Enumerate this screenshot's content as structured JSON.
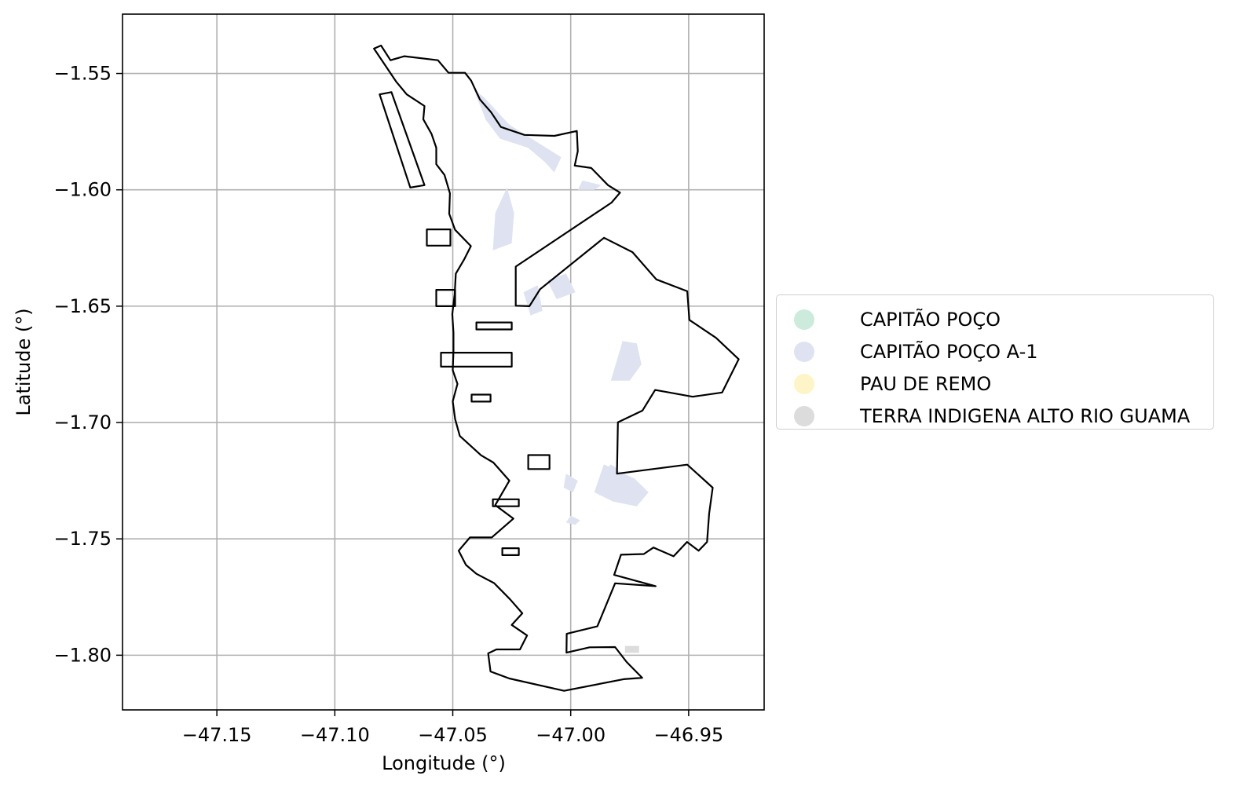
{
  "chart_data": {
    "type": "map",
    "xlabel": "Longitude (°)",
    "ylabel": "Latitude (°)",
    "xlim": [
      -47.19,
      -46.918
    ],
    "ylim": [
      -1.8235,
      -1.5245
    ],
    "xticks": [
      {
        "value": -47.15,
        "label": "−47.15"
      },
      {
        "value": -47.1,
        "label": "−47.10"
      },
      {
        "value": -47.05,
        "label": "−47.05"
      },
      {
        "value": -47.0,
        "label": "−47.00"
      },
      {
        "value": -46.95,
        "label": "−46.95"
      }
    ],
    "yticks": [
      {
        "value": -1.55,
        "label": "−1.55"
      },
      {
        "value": -1.6,
        "label": "−1.60"
      },
      {
        "value": -1.65,
        "label": "−1.65"
      },
      {
        "value": -1.7,
        "label": "−1.70"
      },
      {
        "value": -1.75,
        "label": "−1.75"
      },
      {
        "value": -1.8,
        "label": "−1.80"
      }
    ],
    "grid": true,
    "legend_placement": "center-right outside",
    "legend": [
      {
        "label": "CAPITÃO POÇO",
        "color": "#cdebdc"
      },
      {
        "label": "CAPITÃO POÇO A-1",
        "color": "#dfe3f1"
      },
      {
        "label": "PAU DE REMO",
        "color": "#fdf5c8"
      },
      {
        "label": "TERRA INDIGENA ALTO RIO GUAMA",
        "color": "#dcdcdc"
      }
    ],
    "boundary_color": "#000000",
    "boundary": [
      [
        -47.0834,
        -1.5393
      ],
      [
        -47.0804,
        -1.538
      ],
      [
        -47.0764,
        -1.5443
      ],
      [
        -47.0705,
        -1.5426
      ],
      [
        -47.0563,
        -1.5443
      ],
      [
        -47.0518,
        -1.5497
      ],
      [
        -47.0448,
        -1.5497
      ],
      [
        -47.0422,
        -1.5531
      ],
      [
        -47.0385,
        -1.5612
      ],
      [
        -47.0338,
        -1.5666
      ],
      [
        -47.0296,
        -1.573
      ],
      [
        -47.0196,
        -1.5764
      ],
      [
        -47.0069,
        -1.5768
      ],
      [
        -46.9974,
        -1.5747
      ],
      [
        -46.997,
        -1.5834
      ],
      [
        -46.9983,
        -1.5896
      ],
      [
        -46.9913,
        -1.5906
      ],
      [
        -46.9842,
        -1.598
      ],
      [
        -46.9791,
        -1.6012
      ],
      [
        -46.9827,
        -1.6055
      ],
      [
        -47.0233,
        -1.633
      ],
      [
        -47.0233,
        -1.6498
      ],
      [
        -47.0175,
        -1.65
      ],
      [
        -47.013,
        -1.6427
      ],
      [
        -46.9859,
        -1.6206
      ],
      [
        -46.9738,
        -1.6268
      ],
      [
        -46.9637,
        -1.6385
      ],
      [
        -46.9506,
        -1.6436
      ],
      [
        -46.9497,
        -1.6559
      ],
      [
        -46.9384,
        -1.6636
      ],
      [
        -46.9288,
        -1.6728
      ],
      [
        -46.9358,
        -1.6871
      ],
      [
        -46.9483,
        -1.6889
      ],
      [
        -46.9642,
        -1.686
      ],
      [
        -46.9696,
        -1.6949
      ],
      [
        -46.98,
        -1.6999
      ],
      [
        -46.9804,
        -1.722
      ],
      [
        -46.9506,
        -1.7181
      ],
      [
        -46.9398,
        -1.728
      ],
      [
        -46.9413,
        -1.739
      ],
      [
        -46.9422,
        -1.7513
      ],
      [
        -46.9458,
        -1.7551
      ],
      [
        -46.9507,
        -1.7513
      ],
      [
        -46.9564,
        -1.7575
      ],
      [
        -46.9649,
        -1.7537
      ],
      [
        -46.969,
        -1.7565
      ],
      [
        -46.9787,
        -1.7568
      ],
      [
        -46.9816,
        -1.7655
      ],
      [
        -46.964,
        -1.7703
      ],
      [
        -46.9812,
        -1.7691
      ],
      [
        -46.9887,
        -1.7876
      ],
      [
        -47.0017,
        -1.7908
      ],
      [
        -47.0018,
        -1.7989
      ],
      [
        -46.992,
        -1.7966
      ],
      [
        -46.9812,
        -1.7965
      ],
      [
        -46.9763,
        -1.8029
      ],
      [
        -46.9697,
        -1.8097
      ],
      [
        -46.9776,
        -1.8103
      ],
      [
        -47.0028,
        -1.8153
      ],
      [
        -47.026,
        -1.81
      ],
      [
        -47.034,
        -1.807
      ],
      [
        -47.035,
        -1.7992
      ],
      [
        -47.0315,
        -1.7975
      ],
      [
        -47.0215,
        -1.7975
      ],
      [
        -47.0185,
        -1.7915
      ],
      [
        -47.025,
        -1.787
      ],
      [
        -47.0205,
        -1.782
      ],
      [
        -47.0257,
        -1.776
      ],
      [
        -47.0325,
        -1.769
      ],
      [
        -47.04,
        -1.765
      ],
      [
        -47.0444,
        -1.7612
      ],
      [
        -47.0475,
        -1.7551
      ],
      [
        -47.0427,
        -1.7494
      ],
      [
        -47.0335,
        -1.7494
      ],
      [
        -47.0243,
        -1.7413
      ],
      [
        -47.032,
        -1.7355
      ],
      [
        -47.026,
        -1.725
      ],
      [
        -47.0328,
        -1.7172
      ],
      [
        -47.038,
        -1.7141
      ],
      [
        -47.047,
        -1.7058
      ],
      [
        -47.049,
        -1.6985
      ],
      [
        -47.05,
        -1.6909
      ],
      [
        -47.048,
        -1.6834
      ],
      [
        -47.05,
        -1.6775
      ],
      [
        -47.0497,
        -1.6694
      ],
      [
        -47.0497,
        -1.6614
      ],
      [
        -47.0502,
        -1.6534
      ],
      [
        -47.0492,
        -1.645
      ],
      [
        -47.0487,
        -1.636
      ],
      [
        -47.0452,
        -1.63
      ],
      [
        -47.0423,
        -1.6242
      ],
      [
        -47.049,
        -1.6172
      ],
      [
        -47.0515,
        -1.6103
      ],
      [
        -47.0512,
        -1.6015
      ],
      [
        -47.0535,
        -1.5936
      ],
      [
        -47.057,
        -1.589
      ],
      [
        -47.057,
        -1.5819
      ],
      [
        -47.059,
        -1.576
      ],
      [
        -47.0625,
        -1.5697
      ],
      [
        -47.062,
        -1.564
      ],
      [
        -47.0695,
        -1.559
      ],
      [
        -47.074,
        -1.5535
      ],
      [
        -47.0834,
        -1.5393
      ]
    ],
    "shaded_areas": [
      {
        "series": "CAPITÃO POÇO A-1",
        "points": [
          [
            -47.041,
            -1.557
          ],
          [
            -47.036,
            -1.57
          ],
          [
            -47.03,
            -1.578
          ],
          [
            -47.018,
            -1.582
          ],
          [
            -47.011,
            -1.588
          ],
          [
            -47.007,
            -1.5925
          ],
          [
            -47.004,
            -1.586
          ],
          [
            -47.015,
            -1.579
          ],
          [
            -47.026,
            -1.572
          ],
          [
            -47.037,
            -1.56
          ]
        ]
      },
      {
        "series": "CAPITÃO POÇO A-1",
        "points": [
          [
            -47.027,
            -1.599
          ],
          [
            -47.032,
            -1.61
          ],
          [
            -47.033,
            -1.626
          ],
          [
            -47.025,
            -1.623
          ],
          [
            -47.024,
            -1.61
          ]
        ]
      },
      {
        "series": "CAPITÃO POÇO A-1",
        "points": [
          [
            -46.995,
            -1.596
          ],
          [
            -46.987,
            -1.598
          ],
          [
            -46.99,
            -1.6
          ],
          [
            -46.997,
            -1.6
          ]
        ]
      },
      {
        "series": "CAPITÃO POÇO A-1",
        "points": [
          [
            -47.01,
            -1.639
          ],
          [
            -47.002,
            -1.636
          ],
          [
            -46.998,
            -1.644
          ],
          [
            -47.006,
            -1.647
          ]
        ]
      },
      {
        "series": "CAPITÃO POÇO A-1",
        "points": [
          [
            -47.02,
            -1.644
          ],
          [
            -47.014,
            -1.641
          ],
          [
            -47.012,
            -1.652
          ],
          [
            -47.017,
            -1.654
          ]
        ]
      },
      {
        "series": "CAPITÃO POÇO A-1",
        "points": [
          [
            -46.978,
            -1.665
          ],
          [
            -46.972,
            -1.666
          ],
          [
            -46.97,
            -1.675
          ],
          [
            -46.975,
            -1.682
          ],
          [
            -46.983,
            -1.682
          ]
        ]
      },
      {
        "series": "CAPITÃO POÇO A-1",
        "points": [
          [
            -46.986,
            -1.718
          ],
          [
            -46.973,
            -1.724
          ],
          [
            -46.967,
            -1.73
          ],
          [
            -46.972,
            -1.736
          ],
          [
            -46.982,
            -1.734
          ],
          [
            -46.99,
            -1.73
          ]
        ]
      },
      {
        "series": "CAPITÃO POÇO A-1",
        "points": [
          [
            -47.002,
            -1.722
          ],
          [
            -46.997,
            -1.725
          ],
          [
            -46.999,
            -1.73
          ],
          [
            -47.003,
            -1.728
          ]
        ]
      },
      {
        "series": "CAPITÃO POÇO A-1",
        "points": [
          [
            -47.0,
            -1.74
          ],
          [
            -46.996,
            -1.742
          ],
          [
            -46.998,
            -1.744
          ],
          [
            -47.002,
            -1.743
          ]
        ]
      },
      {
        "series": "CAPITÃO POÇO A-1",
        "points": [
          [
            -46.983,
            -1.718
          ],
          [
            -46.98,
            -1.72
          ],
          [
            -46.983,
            -1.723
          ],
          [
            -46.986,
            -1.721
          ]
        ]
      },
      {
        "series": "TERRA INDIGENA ALTO RIO GUAMA",
        "points": [
          [
            -46.977,
            -1.796
          ],
          [
            -46.971,
            -1.796
          ],
          [
            -46.971,
            -1.799
          ],
          [
            -46.977,
            -1.799
          ]
        ]
      }
    ],
    "holes": [
      {
        "points": [
          [
            -47.081,
            -1.559
          ],
          [
            -47.076,
            -1.558
          ],
          [
            -47.062,
            -1.598
          ],
          [
            -47.068,
            -1.599
          ]
        ]
      },
      {
        "points": [
          [
            -47.061,
            -1.617
          ],
          [
            -47.051,
            -1.617
          ],
          [
            -47.051,
            -1.624
          ],
          [
            -47.061,
            -1.624
          ]
        ]
      },
      {
        "points": [
          [
            -47.057,
            -1.643
          ],
          [
            -47.049,
            -1.643
          ],
          [
            -47.049,
            -1.65
          ],
          [
            -47.057,
            -1.65
          ]
        ]
      },
      {
        "points": [
          [
            -47.055,
            -1.67
          ],
          [
            -47.025,
            -1.67
          ],
          [
            -47.025,
            -1.676
          ],
          [
            -47.055,
            -1.676
          ]
        ]
      },
      {
        "points": [
          [
            -47.04,
            -1.657
          ],
          [
            -47.025,
            -1.657
          ],
          [
            -47.025,
            -1.66
          ],
          [
            -47.04,
            -1.66
          ]
        ]
      },
      {
        "points": [
          [
            -47.042,
            -1.688
          ],
          [
            -47.034,
            -1.688
          ],
          [
            -47.034,
            -1.691
          ],
          [
            -47.042,
            -1.691
          ]
        ]
      },
      {
        "points": [
          [
            -47.018,
            -1.714
          ],
          [
            -47.009,
            -1.714
          ],
          [
            -47.009,
            -1.72
          ],
          [
            -47.018,
            -1.72
          ]
        ]
      },
      {
        "points": [
          [
            -47.033,
            -1.733
          ],
          [
            -47.022,
            -1.733
          ],
          [
            -47.022,
            -1.736
          ],
          [
            -47.033,
            -1.736
          ]
        ]
      },
      {
        "points": [
          [
            -47.029,
            -1.754
          ],
          [
            -47.022,
            -1.754
          ],
          [
            -47.022,
            -1.757
          ],
          [
            -47.029,
            -1.757
          ]
        ]
      }
    ]
  }
}
